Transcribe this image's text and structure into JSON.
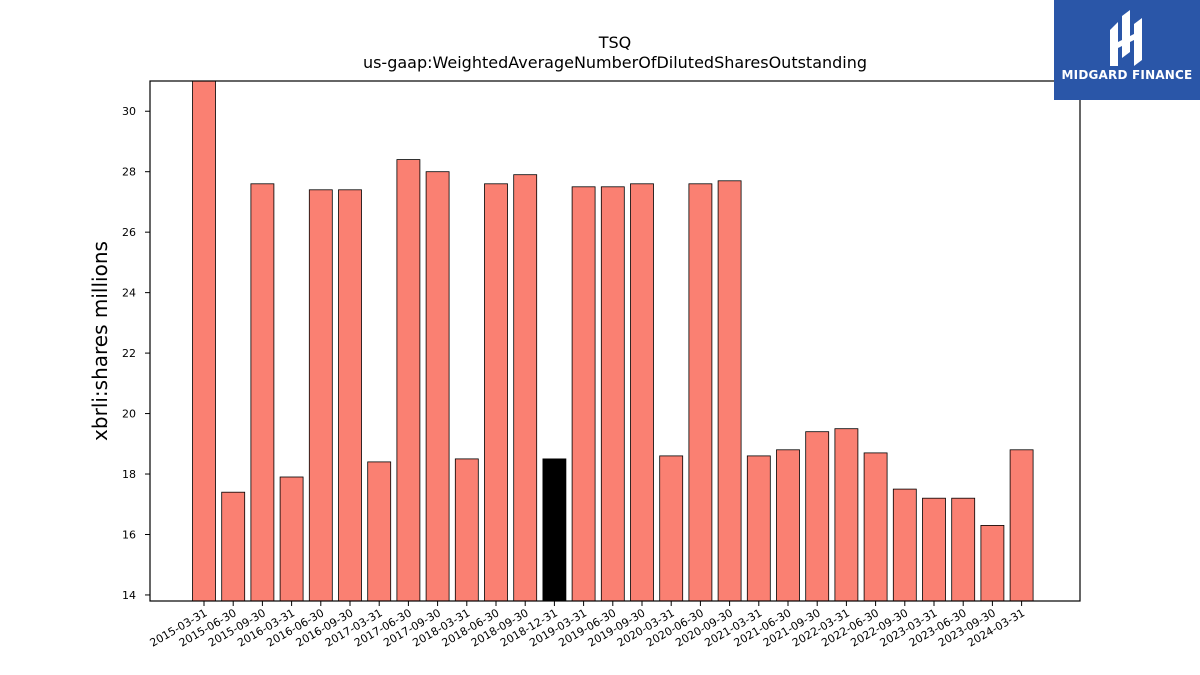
{
  "brand": {
    "logo_text": "MIDGARD FINANCE",
    "logo_color": "#2a56a8"
  },
  "chart_data": {
    "type": "bar",
    "title": "TSQ",
    "subtitle": "us-gaap:WeightedAverageNumberOfDilutedSharesOutstanding",
    "xlabel": "",
    "ylabel": "xbrli:shares millions",
    "ylim": [
      13.8,
      31
    ],
    "yticks": [
      14,
      16,
      18,
      20,
      22,
      24,
      26,
      28,
      30
    ],
    "bar_color": "#fa8072",
    "highlight_color": "#000000",
    "highlight_category": "2018-12-31",
    "categories": [
      "2015-03-31",
      "2015-06-30",
      "2015-09-30",
      "2016-03-31",
      "2016-06-30",
      "2016-09-30",
      "2017-03-31",
      "2017-06-30",
      "2017-09-30",
      "2018-03-31",
      "2018-06-30",
      "2018-09-30",
      "2018-12-31",
      "2019-03-31",
      "2019-06-30",
      "2019-09-30",
      "2020-03-31",
      "2020-06-30",
      "2020-09-30",
      "2021-03-31",
      "2021-06-30",
      "2021-09-30",
      "2022-03-31",
      "2022-06-30",
      "2022-09-30",
      "2023-03-31",
      "2023-06-30",
      "2023-09-30",
      "2024-03-31"
    ],
    "values": [
      31.2,
      17.4,
      27.6,
      17.9,
      27.4,
      27.4,
      18.4,
      28.4,
      28.0,
      18.5,
      27.6,
      27.9,
      18.5,
      27.5,
      27.5,
      27.6,
      18.6,
      27.6,
      27.7,
      18.6,
      18.8,
      19.4,
      19.5,
      18.7,
      17.5,
      17.2,
      17.2,
      16.3,
      18.8
    ]
  }
}
